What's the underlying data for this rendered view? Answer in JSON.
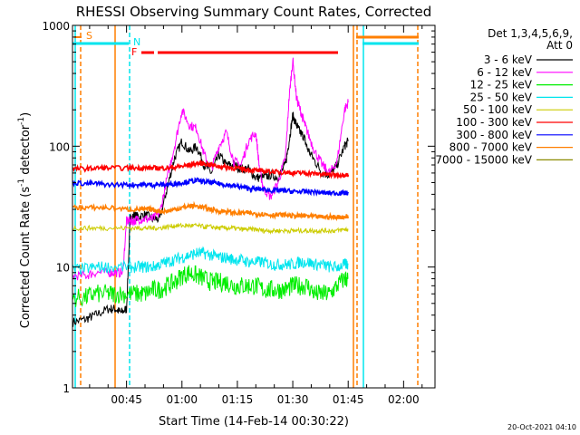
{
  "chart_data": {
    "type": "line",
    "title": "RHESSI Observing Summary Count Rates, Corrected",
    "xlabel": "Start Time (14-Feb-14 00:30:22)",
    "ylabel": "Corrected Count Rate (s⁻¹ detector⁻¹)",
    "ylabel_main": "Corrected Count Rate (s",
    "ylabel_mid": " detector",
    "ylabel_end": ")",
    "ylabel_sup": "-1",
    "yscale": "log",
    "ylim": [
      1,
      1000
    ],
    "xlim_minutes": [
      30.37,
      128.5
    ],
    "x_tick_labels": [
      "00:45",
      "01:00",
      "01:15",
      "01:30",
      "01:45",
      "02:00"
    ],
    "x_tick_minutes": [
      45,
      60,
      75,
      90,
      105,
      120
    ],
    "y_tick_labels": [
      "1",
      "10",
      "100",
      "1000"
    ],
    "y_tick_values": [
      1,
      10,
      100,
      1000
    ],
    "legend_header": [
      "Det 1,3,4,5,6,9,",
      "Att 0"
    ],
    "legend_placement": "right",
    "footer_date": "20-Oct-2021 04:10",
    "series": [
      {
        "name": "3 - 6 keV",
        "color": "#000000",
        "x": [
          30.5,
          34,
          36.5,
          40,
          42,
          43.5,
          45,
          46,
          47,
          48,
          50,
          52,
          54,
          56,
          58,
          60,
          62,
          64,
          66,
          68,
          70,
          72,
          74,
          76,
          78,
          80,
          82,
          84,
          86,
          88,
          89,
          90,
          91,
          92,
          93,
          94,
          96,
          98,
          100,
          102,
          104,
          105
        ],
        "y": [
          3.5,
          3.7,
          4,
          4.5,
          4.5,
          4.2,
          4.5,
          25,
          27,
          26,
          27,
          25,
          25,
          45,
          80,
          110,
          90,
          100,
          70,
          60,
          85,
          70,
          70,
          65,
          65,
          55,
          55,
          58,
          55,
          70,
          110,
          180,
          150,
          130,
          120,
          95,
          75,
          60,
          58,
          70,
          100,
          110
        ]
      },
      {
        "name": "6 - 12 keV",
        "color": "#ff00ff",
        "x": [
          30.5,
          34,
          36.5,
          40,
          42,
          44,
          45,
          46,
          47,
          48,
          50,
          52,
          54,
          56,
          58,
          60,
          62,
          64,
          66,
          68,
          70,
          72,
          74,
          76,
          78,
          80,
          81,
          82,
          84,
          86,
          88,
          89,
          90,
          91,
          92,
          93,
          94,
          96,
          98,
          100,
          102,
          104,
          105
        ],
        "y": [
          8.5,
          8.5,
          9,
          9,
          9,
          9,
          24,
          24,
          24,
          25,
          25,
          25,
          28,
          55,
          100,
          200,
          150,
          140,
          85,
          65,
          100,
          130,
          75,
          70,
          110,
          130,
          65,
          45,
          38,
          50,
          80,
          250,
          520,
          250,
          200,
          160,
          130,
          90,
          70,
          60,
          75,
          200,
          230
        ]
      },
      {
        "name": "12 - 25 keV",
        "color": "#00ee00",
        "x": [
          30.5,
          34,
          36.5,
          40,
          42,
          45,
          48,
          50,
          52,
          54,
          56,
          58,
          60,
          62,
          64,
          66,
          68,
          70,
          72,
          74,
          76,
          78,
          80,
          82,
          84,
          86,
          88,
          90,
          92,
          94,
          96,
          98,
          100,
          102,
          104,
          105
        ],
        "y": [
          5.5,
          5.6,
          6,
          6,
          6,
          6,
          6,
          6,
          6.5,
          6.5,
          7,
          7.5,
          8.5,
          9,
          8.5,
          8,
          7.5,
          7.5,
          7.5,
          7,
          7,
          7,
          7,
          6.5,
          6.5,
          6.5,
          6.5,
          7,
          7,
          7,
          6,
          6,
          6,
          7,
          8,
          8
        ]
      },
      {
        "name": "25 - 50 keV",
        "color": "#00e5ee",
        "x": [
          30.5,
          34,
          37,
          40,
          45,
          48,
          50,
          52,
          54,
          56,
          58,
          60,
          62,
          64,
          66,
          68,
          70,
          72,
          74,
          76,
          78,
          80,
          82,
          84,
          86,
          88,
          90,
          92,
          94,
          96,
          98,
          100,
          102,
          104,
          105
        ],
        "y": [
          9.5,
          9.7,
          10,
          10,
          10,
          10,
          10,
          10,
          10.5,
          11,
          11.5,
          12,
          12.5,
          13,
          13,
          12.5,
          12,
          12,
          11.5,
          11.5,
          11,
          11,
          11,
          10.5,
          10.5,
          10.5,
          10.5,
          11,
          11,
          10.5,
          10.5,
          10,
          10,
          10.5,
          10.5
        ]
      },
      {
        "name": "50 - 100 keV",
        "color": "#cccc00",
        "x": [
          30.5,
          34,
          37,
          40,
          45,
          48,
          50,
          52,
          54,
          56,
          58,
          60,
          62,
          64,
          66,
          68,
          70,
          72,
          74,
          76,
          78,
          80,
          82,
          84,
          86,
          88,
          90,
          92,
          94,
          96,
          98,
          100,
          102,
          104,
          105
        ],
        "y": [
          21,
          21,
          21,
          21,
          21,
          21,
          21,
          21,
          21,
          21.5,
          22,
          22,
          22,
          22,
          21.5,
          21.5,
          21,
          21,
          21,
          20.5,
          20.5,
          20.5,
          20,
          20,
          20,
          20,
          20,
          20,
          20,
          20,
          20,
          20,
          20,
          20.5,
          20.5
        ]
      },
      {
        "name": "100 - 300 keV",
        "color": "#ff0000",
        "x": [
          30.5,
          34,
          37,
          40,
          45,
          48,
          50,
          52,
          54,
          56,
          58,
          60,
          62,
          64,
          66,
          68,
          70,
          72,
          74,
          76,
          78,
          80,
          82,
          84,
          86,
          88,
          90,
          92,
          94,
          96,
          98,
          100,
          102,
          104,
          105
        ],
        "y": [
          65,
          65,
          66,
          66,
          66,
          66,
          66,
          66,
          66,
          66,
          67,
          68,
          70,
          72,
          72,
          70,
          68,
          67,
          66,
          65,
          64,
          63,
          62,
          62,
          61,
          61,
          60,
          60,
          60,
          59,
          59,
          58,
          58,
          58,
          58
        ]
      },
      {
        "name": "300 - 800 keV",
        "color": "#0000ff",
        "x": [
          30.5,
          34,
          37,
          40,
          45,
          48,
          50,
          52,
          54,
          56,
          58,
          60,
          62,
          64,
          66,
          68,
          70,
          72,
          74,
          76,
          78,
          80,
          82,
          84,
          86,
          88,
          90,
          92,
          94,
          96,
          98,
          100,
          102,
          104,
          105
        ],
        "y": [
          50,
          49,
          49,
          48,
          48,
          48,
          48,
          48,
          48,
          48,
          49,
          50,
          51,
          52,
          51,
          50,
          49,
          48,
          47,
          46,
          45,
          44,
          44,
          43,
          43,
          43,
          42,
          42,
          42,
          42,
          41,
          41,
          41,
          41,
          41
        ]
      },
      {
        "name": "800 - 7000 keV",
        "color": "#ff7f00",
        "x": [
          30.5,
          34,
          37,
          40,
          45,
          48,
          50,
          52,
          54,
          56,
          58,
          60,
          62,
          64,
          66,
          68,
          70,
          72,
          74,
          76,
          78,
          80,
          82,
          84,
          86,
          88,
          90,
          92,
          94,
          96,
          98,
          100,
          102,
          104,
          105
        ],
        "y": [
          31,
          31,
          31,
          31,
          30,
          30,
          30,
          30,
          29,
          29,
          30,
          31,
          32,
          32,
          31,
          30,
          29,
          29,
          28,
          28,
          28,
          27.5,
          27.5,
          27,
          27,
          27,
          26.5,
          26.5,
          26.5,
          26,
          26,
          26,
          26,
          26,
          26
        ]
      },
      {
        "name": "7000 - 15000 keV",
        "color": "#8b8b00",
        "x": [],
        "y": []
      }
    ],
    "flags": [
      {
        "label": "S",
        "color": "#ff7f00"
      },
      {
        "label": "N",
        "color": "#00e5ee"
      },
      {
        "label": "F",
        "color": "#ff0000"
      }
    ]
  }
}
